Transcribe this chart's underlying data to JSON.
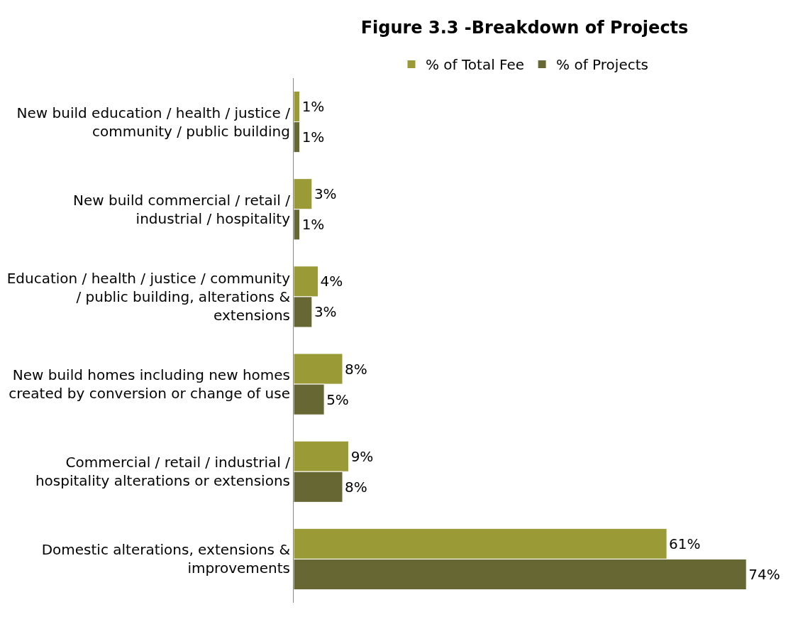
{
  "chart_data": {
    "type": "bar",
    "orientation": "horizontal",
    "title": "Figure 3.3 -Breakdown of Projects",
    "categories": [
      "New build education / health / justice / community / public building",
      "New build commercial / retail / industrial / hospitality",
      "Education / health / justice / community / public building, alterations & extensions",
      "New build homes including new homes created by conversion or change of use",
      "Commercial / retail / industrial / hospitality alterations or extensions",
      "Domestic alterations, extensions & improvements"
    ],
    "series": [
      {
        "name": "% of Total Fee",
        "color": "#9a9b36",
        "values": [
          1,
          3,
          4,
          8,
          9,
          61
        ],
        "value_labels": [
          "1%",
          "3%",
          "4%",
          "8%",
          "9%",
          "61%"
        ]
      },
      {
        "name": "% of Projects",
        "color": "#676733",
        "values": [
          1,
          1,
          3,
          5,
          8,
          74
        ],
        "value_labels": [
          "1%",
          "1%",
          "3%",
          "5%",
          "8%",
          "74%"
        ]
      }
    ],
    "legend": "top",
    "tick_labels": "y"
  }
}
